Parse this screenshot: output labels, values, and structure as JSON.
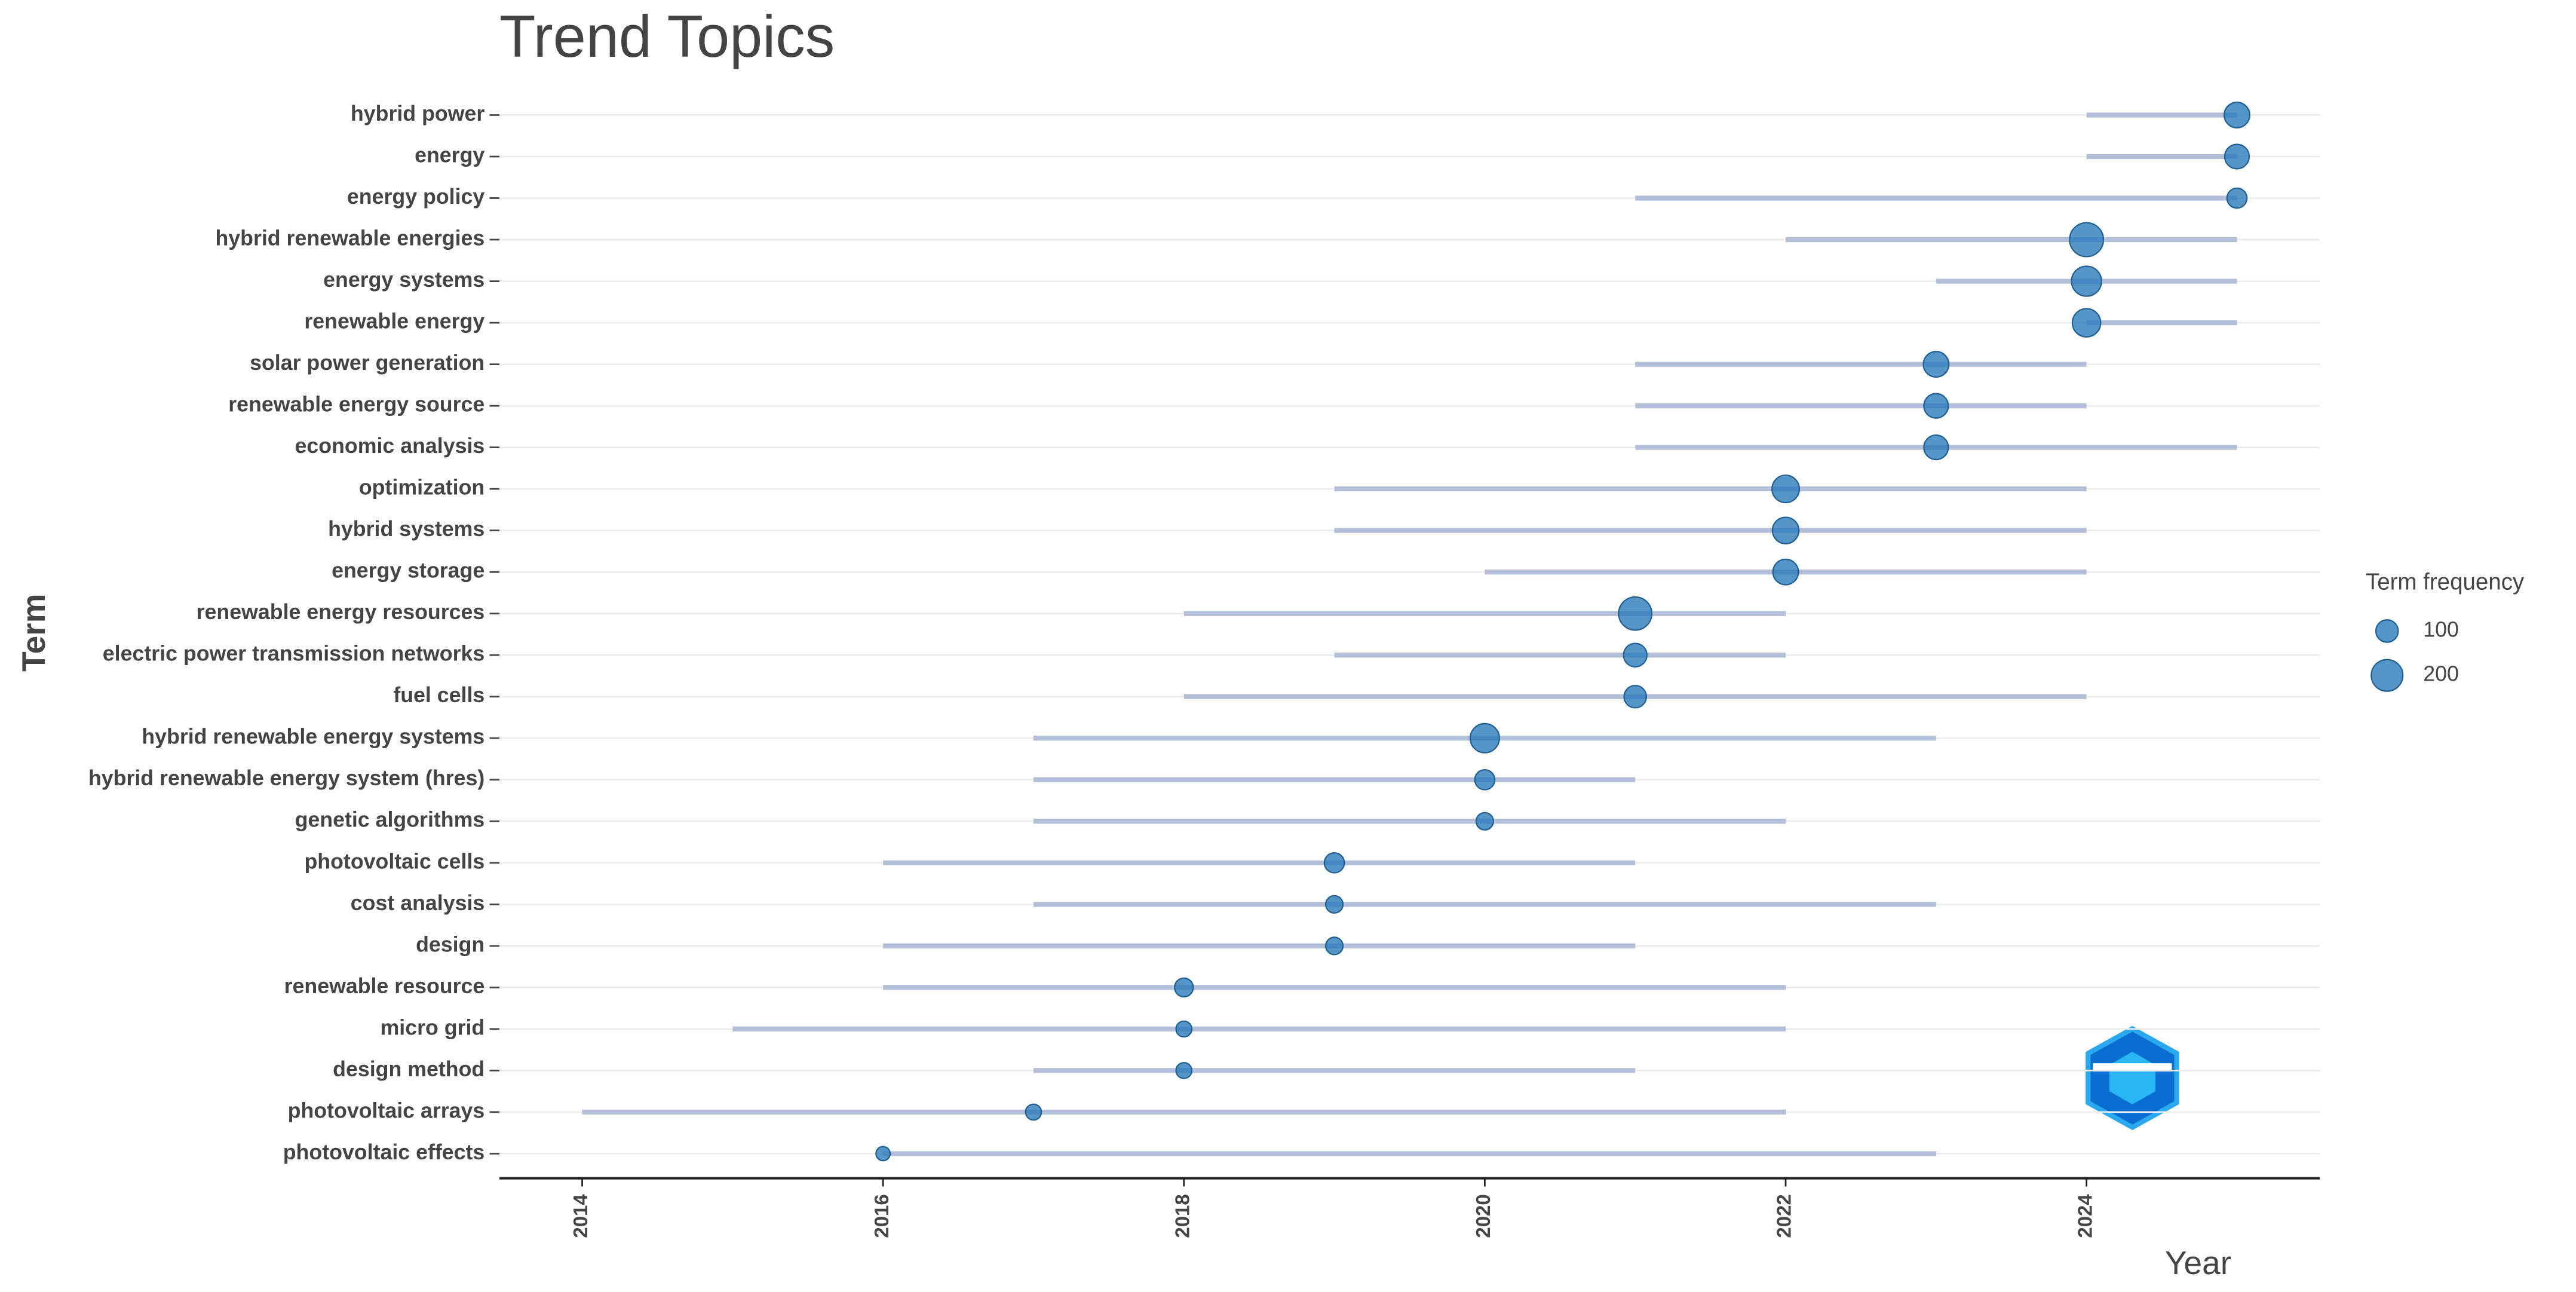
{
  "chart_data": {
    "type": "trend",
    "title": "Trend Topics",
    "xlabel": "Year",
    "ylabel": "Term",
    "categories": [
      "hybrid power",
      "energy",
      "energy policy",
      "hybrid renewable energies",
      "energy systems",
      "renewable energy",
      "solar power generation",
      "renewable energy source",
      "economic analysis",
      "optimization",
      "hybrid systems",
      "energy storage",
      "renewable energy resources",
      "electric power transmission networks",
      "fuel cells",
      "hybrid renewable energy systems",
      "hybrid renewable energy system (hres)",
      "genetic algorithms",
      "photovoltaic cells",
      "cost analysis",
      "design",
      "renewable resource",
      "micro grid",
      "design method",
      "photovoltaic arrays",
      "photovoltaic effects"
    ],
    "q1": [
      2024,
      2024,
      2021,
      2022,
      2023,
      2024,
      2021,
      2021,
      2021,
      2019,
      2019,
      2020,
      2018,
      2019,
      2018,
      2017,
      2017,
      2017,
      2016,
      2017,
      2016,
      2016,
      2015,
      2017,
      2014,
      2016
    ],
    "median": [
      2025,
      2025,
      2025,
      2024,
      2024,
      2024,
      2023,
      2023,
      2023,
      2022,
      2022,
      2022,
      2021,
      2021,
      2021,
      2020,
      2020,
      2020,
      2019,
      2019,
      2019,
      2018,
      2018,
      2018,
      2017,
      2016
    ],
    "q3": [
      2025,
      2025,
      2025,
      2025,
      2025,
      2025,
      2024,
      2024,
      2025,
      2024,
      2024,
      2024,
      2022,
      2022,
      2024,
      2023,
      2021,
      2022,
      2021,
      2023,
      2021,
      2022,
      2022,
      2021,
      2022,
      2023
    ],
    "frequency": [
      130,
      120,
      80,
      230,
      180,
      160,
      130,
      120,
      120,
      150,
      140,
      130,
      220,
      110,
      100,
      170,
      80,
      60,
      80,
      60,
      60,
      70,
      50,
      50,
      50,
      40
    ],
    "line_color": "#b3bfd9",
    "point_color": "#2b7bba",
    "xlim": [
      2013.45,
      2025.55
    ],
    "xticks": [
      2014,
      2016,
      2018,
      2020,
      2022,
      2024
    ],
    "grid": true,
    "legend": {
      "title": "Term frequency",
      "sizes": [
        100,
        200
      ]
    }
  }
}
